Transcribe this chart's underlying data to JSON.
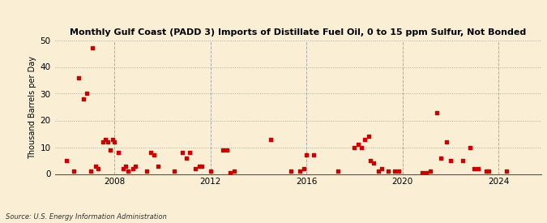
{
  "title": "Monthly Gulf Coast (PADD 3) Imports of Distillate Fuel Oil, 0 to 15 ppm Sulfur, Not Bonded",
  "ylabel": "Thousand Barrels per Day",
  "source": "Source: U.S. Energy Information Administration",
  "background_color": "#faefd4",
  "marker_color": "#cc0000",
  "ylim": [
    0,
    50
  ],
  "yticks": [
    0,
    10,
    20,
    30,
    40,
    50
  ],
  "xlim_start": 2005.5,
  "xlim_end": 2025.8,
  "xticks": [
    2008,
    2012,
    2016,
    2020,
    2024
  ],
  "data_points": [
    [
      2006.0,
      5.0
    ],
    [
      2006.3,
      1.0
    ],
    [
      2006.5,
      36.0
    ],
    [
      2006.7,
      28.0
    ],
    [
      2006.82,
      30.0
    ],
    [
      2007.0,
      1.0
    ],
    [
      2007.08,
      47.0
    ],
    [
      2007.2,
      3.0
    ],
    [
      2007.3,
      2.0
    ],
    [
      2007.5,
      12.0
    ],
    [
      2007.6,
      13.0
    ],
    [
      2007.7,
      12.0
    ],
    [
      2007.82,
      9.0
    ],
    [
      2007.92,
      13.0
    ],
    [
      2008.0,
      12.0
    ],
    [
      2008.15,
      8.0
    ],
    [
      2008.35,
      2.0
    ],
    [
      2008.45,
      3.0
    ],
    [
      2008.55,
      1.0
    ],
    [
      2008.75,
      2.0
    ],
    [
      2008.85,
      3.0
    ],
    [
      2009.35,
      1.0
    ],
    [
      2009.5,
      8.0
    ],
    [
      2009.65,
      7.0
    ],
    [
      2009.82,
      3.0
    ],
    [
      2010.5,
      1.0
    ],
    [
      2010.82,
      8.0
    ],
    [
      2011.0,
      6.0
    ],
    [
      2011.12,
      8.0
    ],
    [
      2011.35,
      2.0
    ],
    [
      2011.52,
      3.0
    ],
    [
      2011.62,
      3.0
    ],
    [
      2012.0,
      1.0
    ],
    [
      2012.5,
      9.0
    ],
    [
      2012.67,
      9.0
    ],
    [
      2012.82,
      0.5
    ],
    [
      2013.0,
      1.0
    ],
    [
      2014.5,
      13.0
    ],
    [
      2015.35,
      1.0
    ],
    [
      2015.72,
      1.0
    ],
    [
      2015.9,
      2.0
    ],
    [
      2016.0,
      7.0
    ],
    [
      2016.3,
      7.0
    ],
    [
      2017.3,
      1.0
    ],
    [
      2018.0,
      10.0
    ],
    [
      2018.17,
      11.0
    ],
    [
      2018.3,
      10.0
    ],
    [
      2018.42,
      13.0
    ],
    [
      2018.58,
      14.0
    ],
    [
      2018.67,
      5.0
    ],
    [
      2018.8,
      4.0
    ],
    [
      2019.0,
      1.0
    ],
    [
      2019.12,
      2.0
    ],
    [
      2019.4,
      1.0
    ],
    [
      2019.67,
      1.0
    ],
    [
      2019.83,
      1.0
    ],
    [
      2020.83,
      0.5
    ],
    [
      2021.0,
      0.5
    ],
    [
      2021.17,
      1.0
    ],
    [
      2021.42,
      23.0
    ],
    [
      2021.6,
      6.0
    ],
    [
      2021.83,
      12.0
    ],
    [
      2022.0,
      5.0
    ],
    [
      2022.5,
      5.0
    ],
    [
      2022.83,
      10.0
    ],
    [
      2023.0,
      2.0
    ],
    [
      2023.17,
      2.0
    ],
    [
      2023.5,
      1.0
    ],
    [
      2023.6,
      1.0
    ],
    [
      2024.33,
      1.0
    ]
  ]
}
